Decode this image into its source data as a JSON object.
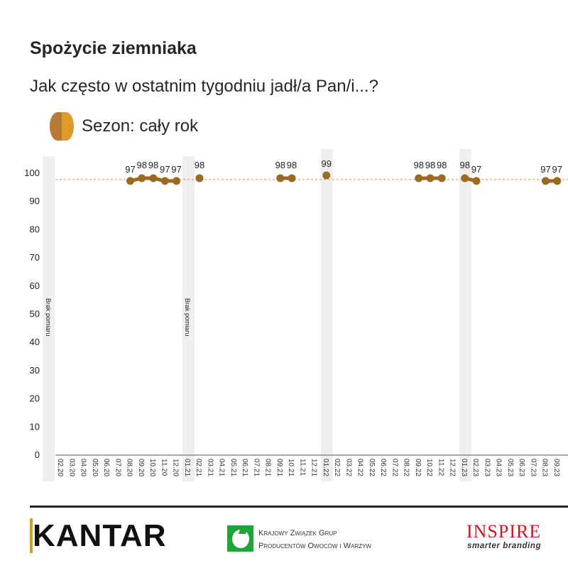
{
  "header": {
    "title": "Spożycie ziemniaka",
    "question": "Jak często w ostatnim tygodniu jadł/a Pan/i...?",
    "legend_label": "Sezon: cały rok"
  },
  "colors": {
    "series": "#9b6a20",
    "legend_left": "#b97a35",
    "legend_right": "#e09a2a",
    "reference_line": "#c8925a",
    "no_data_band": "#efefef"
  },
  "chart_data": {
    "type": "line",
    "title": "Spożycie ziemniaka",
    "subtitle": "Jak często w ostatnim tygodniu jadł/a Pan/i...?",
    "xlabel": "",
    "ylabel": "",
    "ylim": [
      0,
      100
    ],
    "yticks": [
      0,
      10,
      20,
      30,
      40,
      50,
      60,
      70,
      80,
      90,
      100
    ],
    "grid": false,
    "legend_position": "top-left",
    "reference_line": 97.5,
    "no_data_label": "Brak pomiaru",
    "no_data_bands": [
      "01.20",
      "01.21"
    ],
    "highlight_bands": [
      "01.22",
      "01.23"
    ],
    "categories": [
      "02.20",
      "03.20",
      "04.20",
      "05.20",
      "06.20",
      "07.20",
      "08.20",
      "09.20",
      "10.20",
      "11.20",
      "12.20",
      "01.21",
      "02.21",
      "03.21",
      "04.21",
      "05.21",
      "06.21",
      "07.21",
      "08.21",
      "09.21",
      "10.21",
      "11.21",
      "12.21",
      "01.22",
      "02.22",
      "03.22",
      "04.22",
      "05.22",
      "06.22",
      "07.22",
      "08.22",
      "09.22",
      "10.22",
      "11.22",
      "12.22",
      "01.23",
      "02.23",
      "03.23",
      "04.23",
      "05.23",
      "06.23",
      "07.23",
      "08.23",
      "09.23"
    ],
    "series": [
      {
        "name": "Sezon: cały rok",
        "values": [
          null,
          null,
          null,
          null,
          null,
          null,
          97,
          98,
          98,
          97,
          97,
          null,
          98,
          null,
          null,
          null,
          null,
          null,
          null,
          98,
          98,
          null,
          null,
          99,
          null,
          null,
          null,
          null,
          null,
          null,
          null,
          98,
          98,
          98,
          null,
          98,
          97,
          null,
          null,
          null,
          null,
          null,
          97,
          97
        ]
      }
    ]
  },
  "footer": {
    "kantar": "KANTAR",
    "kzg_line1": "Krajowy Związek Grup",
    "kzg_line2": "Producentów Owoców i Warzyw",
    "inspire": "INSPIRE",
    "inspire_tagline": "smarter branding"
  }
}
